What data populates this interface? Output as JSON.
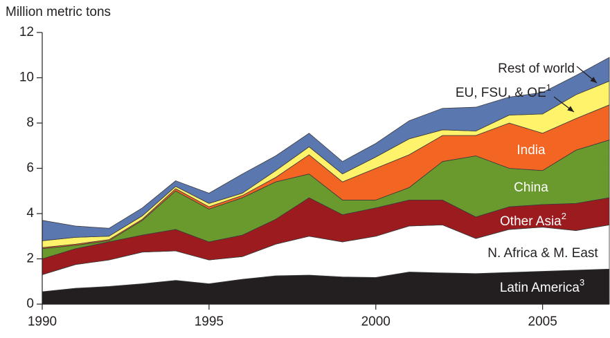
{
  "chart_data": {
    "type": "stacked_area",
    "y_axis_label": "Million metric tons",
    "x": [
      1990,
      1991,
      1992,
      1993,
      1994,
      1995,
      1996,
      1997,
      1998,
      1999,
      2000,
      2001,
      2002,
      2003,
      2004,
      2005,
      2006,
      2007
    ],
    "xlim": [
      1990,
      2007
    ],
    "xticks": [
      1990,
      1995,
      2000,
      2005
    ],
    "ylim": [
      0,
      12
    ],
    "yticks": [
      0,
      2,
      4,
      6,
      8,
      10,
      12
    ],
    "series": [
      {
        "name": "Latin America",
        "note": "3",
        "color": "#231f20",
        "label_color": "#ffffff",
        "values": [
          0.55,
          0.7,
          0.78,
          0.9,
          1.05,
          0.9,
          1.1,
          1.25,
          1.28,
          1.2,
          1.18,
          1.42,
          1.38,
          1.35,
          1.4,
          1.45,
          1.5,
          1.55
        ]
      },
      {
        "name": "N. Africa & M. East",
        "color": "#ffffff",
        "label_color": "#231f20",
        "values": [
          0.75,
          1.05,
          1.17,
          1.4,
          1.3,
          1.05,
          1.0,
          1.4,
          1.72,
          1.55,
          1.82,
          2.03,
          2.12,
          1.55,
          1.9,
          1.95,
          1.75,
          1.95
        ]
      },
      {
        "name": "Other Asia",
        "note": "2",
        "color": "#9b1b1f",
        "label_color": "#ffffff",
        "values": [
          0.7,
          0.7,
          0.8,
          0.75,
          0.95,
          0.8,
          0.95,
          1.1,
          1.7,
          1.2,
          1.25,
          1.15,
          1.1,
          0.95,
          1.0,
          1.0,
          1.2,
          1.2
        ]
      },
      {
        "name": "China",
        "color": "#6a9a2e",
        "label_color": "#ffffff",
        "values": [
          0.45,
          0.15,
          0.05,
          0.65,
          1.7,
          1.45,
          1.65,
          1.65,
          1.05,
          0.65,
          0.35,
          0.55,
          1.7,
          2.7,
          1.7,
          1.5,
          2.35,
          2.55
        ]
      },
      {
        "name": "India",
        "color": "#f26522",
        "label_color": "#ffffff",
        "values": [
          0.05,
          0.05,
          0.05,
          0.05,
          0.1,
          0.1,
          0.1,
          0.2,
          0.85,
          0.8,
          1.4,
          1.45,
          1.15,
          0.9,
          2.0,
          1.65,
          1.4,
          1.55
        ]
      },
      {
        "name": "EU, FSU, & OE",
        "note": "1",
        "color": "#fff36b",
        "label_color": "#231f20",
        "values": [
          0.3,
          0.3,
          0.15,
          0.15,
          0.1,
          0.15,
          0.1,
          0.3,
          0.35,
          0.35,
          0.5,
          0.7,
          0.25,
          0.2,
          0.35,
          0.85,
          1.05,
          1.05
        ]
      },
      {
        "name": "Rest of world",
        "color": "#5b77b0",
        "label_color": "#231f20",
        "values": [
          0.9,
          0.5,
          0.35,
          0.35,
          0.25,
          0.45,
          0.85,
          0.65,
          0.6,
          0.55,
          0.6,
          0.8,
          0.95,
          1.05,
          0.8,
          0.95,
          0.85,
          1.05
        ]
      }
    ]
  }
}
